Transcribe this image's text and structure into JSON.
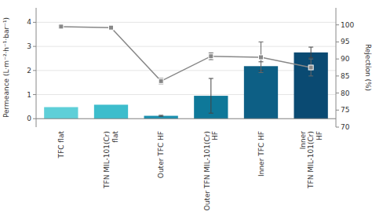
{
  "chart_data": {
    "type": "bar",
    "categories": [
      "TFC flat",
      "TFN MIL-101(Cr)\nflat",
      "Outer TFC HF",
      "Outer TFN MIL-101(Cr)\nHF",
      "Inner TFC HF",
      "Inner\nTFN MIL-101(Cr)\nHF"
    ],
    "ylabel": "Permeance (L·m⁻²·h⁻¹·bar⁻¹)",
    "y2label": "Rejection (%)",
    "ylim": [
      -0.35,
      4.6
    ],
    "yticks": [
      0,
      1,
      2,
      3,
      4
    ],
    "y2lim": [
      70,
      105
    ],
    "y2ticks": [
      70,
      75,
      80,
      85,
      90,
      95,
      100
    ],
    "series": [
      {
        "type": "bar",
        "colors": [
          "#5ecfd8",
          "#3dbdcc",
          "#1a90b0",
          "#0e7899",
          "#0d5f85",
          "#0a4a72"
        ],
        "values": [
          0.48,
          0.58,
          0.12,
          0.95,
          2.18,
          2.75
        ],
        "errors": [
          0.0,
          0.0,
          0.02,
          0.72,
          0.18,
          0.22
        ]
      },
      {
        "type": "line",
        "axis": "y2",
        "color": "#888888",
        "marker": "square",
        "values": [
          99.5,
          99.2,
          83.5,
          90.8,
          90.5,
          87.5
        ],
        "errors": [
          0.3,
          0.3,
          0.8,
          1.0,
          4.5,
          2.5
        ]
      }
    ]
  }
}
